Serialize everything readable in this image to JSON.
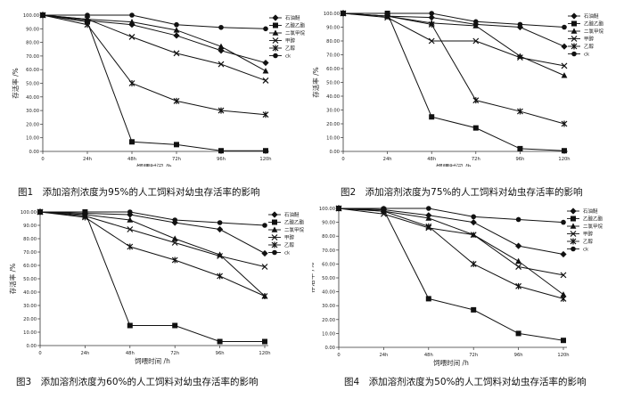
{
  "chart_data": [
    {
      "type": "line",
      "caption": "图1　添加溶剂浓度为95%的人工饲料对幼虫存活率的影响",
      "xlabel": "饲喂时间 /h",
      "ylabel": "存活率 /%",
      "x": [
        "0",
        "24h",
        "48h",
        "72h",
        "96h",
        "120h"
      ],
      "ylim": [
        0,
        100
      ],
      "yticks": [
        "0.00",
        "10.00",
        "20.00",
        "30.00",
        "40.00",
        "50.00",
        "60.00",
        "70.00",
        "80.00",
        "90.00",
        "100.00"
      ],
      "legend_position": "top-right",
      "series": [
        {
          "name": "石油醚",
          "marker": "diamond",
          "values": [
            100,
            96,
            93,
            85,
            74,
            65
          ]
        },
        {
          "name": "乙酸乙酯",
          "marker": "square",
          "values": [
            100,
            95,
            7,
            5,
            0.5,
            0.5
          ]
        },
        {
          "name": "二氯甲烷",
          "marker": "triangle",
          "values": [
            100,
            97,
            95,
            89,
            77,
            59
          ]
        },
        {
          "name": "甲醇",
          "marker": "x",
          "values": [
            100,
            97,
            84,
            72,
            64,
            52
          ]
        },
        {
          "name": "乙醇",
          "marker": "star",
          "values": [
            100,
            93,
            50,
            37,
            30,
            27
          ]
        },
        {
          "name": "ck",
          "marker": "circle",
          "values": [
            100,
            100,
            100,
            93,
            91,
            90
          ]
        }
      ]
    },
    {
      "type": "line",
      "caption": "图2　添加溶剂浓度为75%的人工饲料对幼虫存活率的影响",
      "xlabel": "饲喂时间 /h",
      "ylabel": "存活率 /%",
      "x": [
        "0",
        "24h",
        "48h",
        "72h",
        "96h",
        "120h"
      ],
      "ylim": [
        0,
        100
      ],
      "yticks": [
        "0.00",
        "10.00",
        "20.00",
        "30.00",
        "40.00",
        "50.00",
        "60.00",
        "70.00",
        "80.00",
        "90.00",
        "100.00"
      ],
      "legend_position": "top-right",
      "series": [
        {
          "name": "石油醚",
          "marker": "diamond",
          "values": [
            100,
            98,
            97,
            92,
            90,
            76
          ]
        },
        {
          "name": "乙酸乙酯",
          "marker": "square",
          "values": [
            100,
            100,
            25,
            17,
            2,
            0.5
          ]
        },
        {
          "name": "二氯甲烷",
          "marker": "triangle",
          "values": [
            100,
            98,
            93,
            91,
            69,
            55
          ]
        },
        {
          "name": "甲醇",
          "marker": "x",
          "values": [
            100,
            97,
            80,
            80,
            68,
            62
          ]
        },
        {
          "name": "乙醇",
          "marker": "star",
          "values": [
            100,
            98,
            92,
            37,
            29,
            20
          ]
        },
        {
          "name": "ck",
          "marker": "circle",
          "values": [
            100,
            100,
            100,
            94,
            92,
            90
          ]
        }
      ]
    },
    {
      "type": "line",
      "caption": "图3　添加溶剂浓度为60%的人工饲料对幼虫存活率的影响",
      "xlabel": "饲喂时间 /h",
      "ylabel": "存活率 /%",
      "x": [
        "0",
        "24h",
        "48h",
        "72h",
        "96h",
        "120h"
      ],
      "ylim": [
        0,
        100
      ],
      "yticks": [
        "0.00",
        "10.00",
        "20.00",
        "30.00",
        "40.00",
        "50.00",
        "60.00",
        "70.00",
        "80.00",
        "90.00",
        "100.00"
      ],
      "legend_position": "top-right",
      "series": [
        {
          "name": "石油醚",
          "marker": "diamond",
          "values": [
            100,
            99,
            98,
            92,
            87,
            69
          ]
        },
        {
          "name": "乙酸乙酯",
          "marker": "square",
          "values": [
            100,
            100,
            15,
            15,
            3,
            3
          ]
        },
        {
          "name": "二氯甲烷",
          "marker": "triangle",
          "values": [
            100,
            98,
            94,
            80,
            68,
            37
          ]
        },
        {
          "name": "甲醇",
          "marker": "x",
          "values": [
            100,
            97,
            87,
            77,
            67,
            59
          ]
        },
        {
          "name": "乙醇",
          "marker": "star",
          "values": [
            100,
            96,
            74,
            64,
            52,
            37
          ]
        },
        {
          "name": "ck",
          "marker": "circle",
          "values": [
            100,
            100,
            100,
            94,
            92,
            90
          ]
        }
      ]
    },
    {
      "type": "line",
      "caption": "图4　添加溶剂浓度为50%的人工饲料对幼虫存活率的影响",
      "xlabel": "饲喂时间 /h",
      "ylabel": "存活率 /%",
      "x": [
        "0",
        "24h",
        "48h",
        "72h",
        "96h",
        "120h"
      ],
      "ylim": [
        0,
        100
      ],
      "yticks": [
        "0.00",
        "10.00",
        "20.00",
        "30.00",
        "40.00",
        "50.00",
        "60.00",
        "70.00",
        "80.00",
        "90.00",
        "100.00"
      ],
      "legend_position": "top-right",
      "series": [
        {
          "name": "石油醚",
          "marker": "diamond",
          "values": [
            100,
            99,
            95,
            90,
            73,
            67
          ]
        },
        {
          "name": "乙酸乙酯",
          "marker": "square",
          "values": [
            100,
            99,
            35,
            27,
            10,
            5
          ]
        },
        {
          "name": "二氯甲烷",
          "marker": "triangle",
          "values": [
            100,
            98,
            93,
            81,
            62,
            38
          ]
        },
        {
          "name": "甲醇",
          "marker": "x",
          "values": [
            100,
            96,
            86,
            81,
            58,
            52
          ]
        },
        {
          "name": "乙醇",
          "marker": "star",
          "values": [
            100,
            98,
            87,
            60,
            44,
            35
          ]
        },
        {
          "name": "ck",
          "marker": "circle",
          "values": [
            100,
            100,
            100,
            94,
            92,
            90
          ]
        }
      ]
    }
  ]
}
